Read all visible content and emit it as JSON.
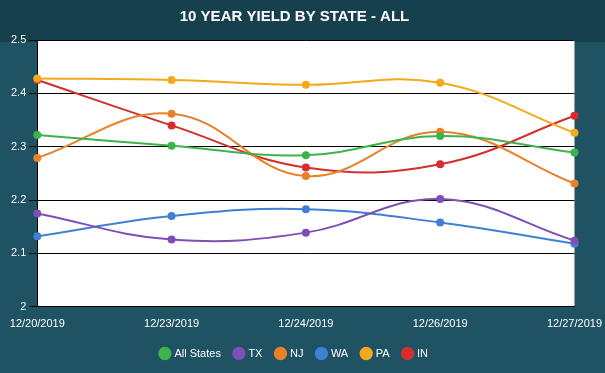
{
  "chart_data": {
    "type": "line",
    "title": "10 YEAR YIELD BY STATE - ALL",
    "categories": [
      "12/20/2019",
      "12/23/2019",
      "12/24/2019",
      "12/26/2019",
      "12/27/2019"
    ],
    "series": [
      {
        "name": "All States",
        "color": "#3cb44b",
        "values": [
          2.322,
          2.302,
          2.284,
          2.32,
          2.289
        ]
      },
      {
        "name": "TX",
        "color": "#7e4fb6",
        "values": [
          2.175,
          2.126,
          2.139,
          2.202,
          2.124
        ]
      },
      {
        "name": "NJ",
        "color": "#e8822a",
        "values": [
          2.279,
          2.362,
          2.245,
          2.328,
          2.231
        ]
      },
      {
        "name": "WA",
        "color": "#3f7fd6",
        "values": [
          2.132,
          2.17,
          2.183,
          2.158,
          2.118
        ]
      },
      {
        "name": "PA",
        "color": "#f2aa1c",
        "values": [
          2.428,
          2.425,
          2.416,
          2.42,
          2.326
        ]
      },
      {
        "name": "IN",
        "color": "#d42e2e",
        "values": [
          2.425,
          2.34,
          2.261,
          2.267,
          2.358
        ]
      }
    ],
    "ylim": [
      2,
      2.5
    ],
    "yticks": [
      2,
      2.1,
      2.2,
      2.3,
      2.4,
      2.5
    ],
    "grid": true,
    "legend": "bottom"
  }
}
